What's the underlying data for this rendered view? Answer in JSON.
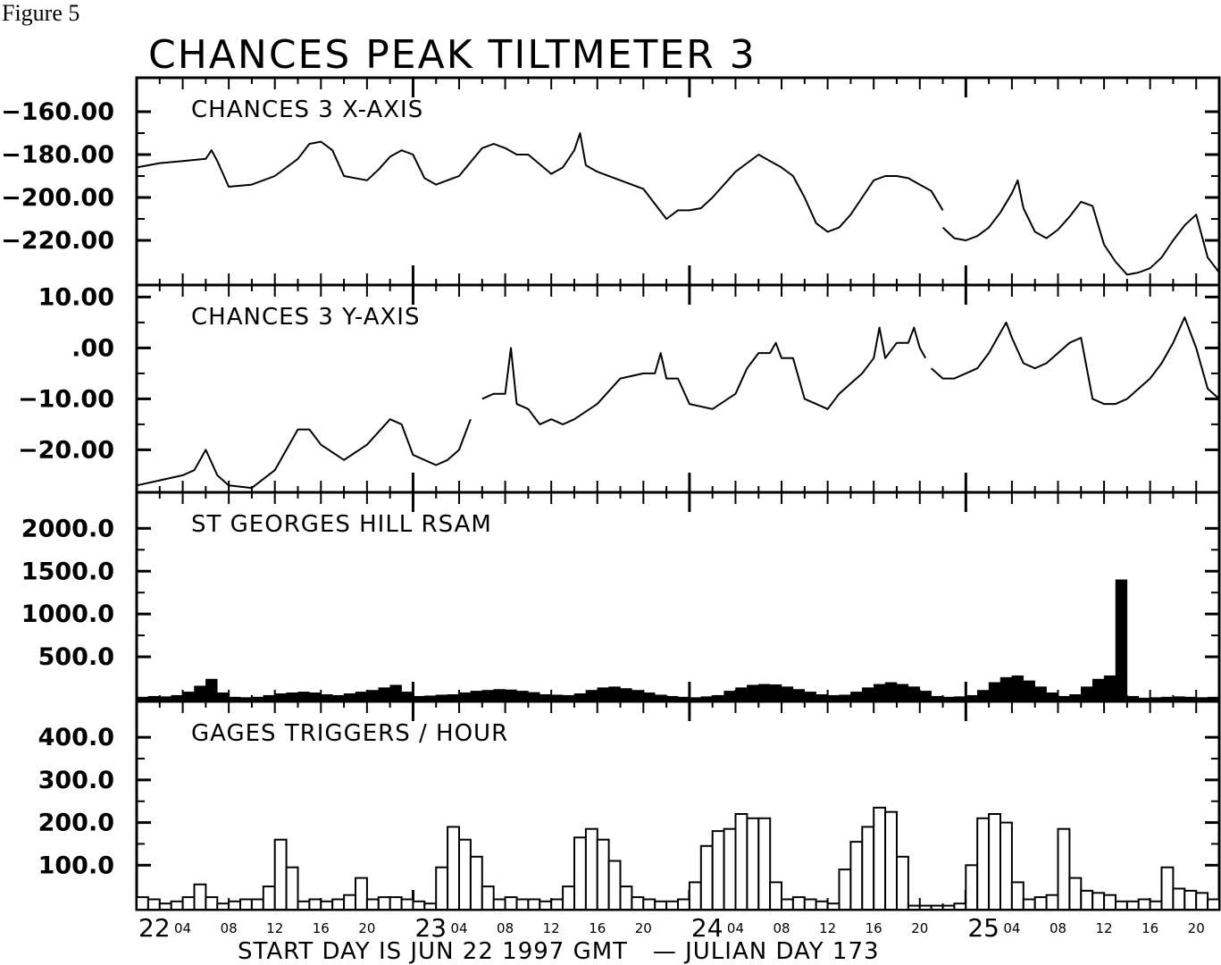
{
  "figure_label": "Figure 5",
  "title": "CHANCES PEAK TILTMETER 3",
  "footer": "START DAY IS JUN 22 1997 GMT   — JULIAN DAY 173",
  "x_axis": {
    "start_hour": 0,
    "end_hour": 94,
    "day_labels": [
      {
        "hour": 0,
        "label": "22"
      },
      {
        "hour": 24,
        "label": "23"
      },
      {
        "hour": 48,
        "label": "24"
      },
      {
        "hour": 72,
        "label": "25"
      }
    ],
    "hour_labels": [
      "04",
      "08",
      "12",
      "16",
      "20"
    ]
  },
  "chart_data": [
    {
      "type": "line",
      "title": "CHANCES 3 X-AXIS",
      "xlabel": "",
      "ylabel": "",
      "ylim": [
        -240,
        -145
      ],
      "yticks": [
        -160,
        -180,
        -200,
        -220
      ],
      "ytick_labels": [
        "−160.00",
        "−180.00",
        "−200.00",
        "−220.00"
      ],
      "segments": [
        {
          "x": [
            0,
            2,
            4,
            6,
            6.5,
            7,
            8,
            10,
            12,
            14,
            15,
            16,
            17,
            18,
            20,
            21,
            22,
            23,
            24,
            25,
            26,
            28,
            30,
            31,
            32,
            33,
            34,
            36,
            37,
            38,
            38.5,
            39,
            40,
            42,
            44,
            46,
            47,
            48,
            49,
            50,
            52,
            54,
            55,
            56,
            57,
            58,
            59,
            60,
            61,
            62,
            63,
            64,
            65,
            66,
            67,
            68,
            69,
            70
          ],
          "y": [
            -186,
            -184,
            -183,
            -182,
            -178,
            -183,
            -195,
            -194,
            -190,
            -182,
            -175,
            -174,
            -178,
            -190,
            -192,
            -187,
            -181,
            -178,
            -180,
            -191,
            -194,
            -190,
            -177,
            -175,
            -177,
            -180,
            -180,
            -189,
            -186,
            -178,
            -170,
            -185,
            -188,
            -192,
            -196,
            -210,
            -206,
            -206,
            -205,
            -200,
            -188,
            -180,
            -183,
            -186,
            -190,
            -200,
            -212,
            -216,
            -214,
            -208,
            -200,
            -192,
            -190,
            -190,
            -191,
            -194,
            -197,
            -206
          ]
        },
        {
          "x": [
            70,
            71,
            72,
            73,
            74,
            75,
            76,
            76.5,
            77,
            78,
            79,
            80,
            81,
            82,
            83,
            84,
            85,
            86,
            87,
            88,
            89,
            90,
            91,
            92,
            93,
            94
          ],
          "y": [
            -214,
            -219,
            -220,
            -218,
            -214,
            -207,
            -198,
            -192,
            -205,
            -216,
            -219,
            -215,
            -209,
            -202,
            -204,
            -222,
            -230,
            -236,
            -235,
            -233,
            -228,
            -220,
            -213,
            -208,
            -228,
            -235
          ]
        }
      ]
    },
    {
      "type": "line",
      "title": "CHANCES 3 Y-AXIS",
      "xlabel": "",
      "ylabel": "",
      "ylim": [
        -28,
        12
      ],
      "yticks": [
        10,
        0,
        -10,
        -20
      ],
      "ytick_labels": [
        "10.00",
        ".00",
        "−10.00",
        "−20.00"
      ],
      "segments": [
        {
          "x": [
            0,
            2,
            4,
            5,
            6,
            7,
            8,
            10,
            12,
            14,
            15,
            16,
            18,
            20,
            22,
            23,
            24,
            25,
            26,
            27,
            28,
            29
          ],
          "y": [
            -27,
            -26,
            -25,
            -24,
            -20,
            -25,
            -27,
            -27.5,
            -24,
            -16,
            -16,
            -19,
            -22,
            -19,
            -14,
            -15,
            -21,
            -22,
            -23,
            -22,
            -20,
            -14
          ]
        },
        {
          "x": [
            30,
            31,
            32,
            32.5,
            33,
            34,
            35,
            36,
            37,
            38,
            40,
            42,
            44,
            45,
            45.5,
            46,
            47,
            48,
            50,
            52,
            53,
            54,
            55,
            55.5,
            56,
            57,
            58,
            59,
            60,
            61,
            62,
            63,
            64,
            64.5,
            65,
            66,
            67,
            67.5,
            68,
            68.5
          ],
          "y": [
            -10,
            -9,
            -9,
            0,
            -11,
            -12,
            -15,
            -14,
            -15,
            -14,
            -11,
            -6,
            -5,
            -5,
            -1,
            -6,
            -6,
            -11,
            -12,
            -9,
            -4,
            -1,
            -1,
            1,
            -2,
            -2,
            -10,
            -11,
            -12,
            -9,
            -7,
            -5,
            -2,
            4,
            -2,
            1,
            1,
            4,
            0,
            -2
          ]
        },
        {
          "x": [
            69,
            70,
            71,
            72,
            73,
            74,
            75,
            75.5,
            76,
            77,
            78,
            79,
            80,
            81,
            82,
            83,
            84,
            85,
            86,
            87,
            88,
            89,
            90,
            91,
            92,
            93,
            94
          ],
          "y": [
            -4,
            -6,
            -6,
            -5,
            -4,
            -1,
            3,
            5,
            2,
            -3,
            -4,
            -3,
            -1,
            1,
            2,
            -10,
            -11,
            -11,
            -10,
            -8,
            -6,
            -3,
            1,
            6,
            0,
            -8,
            -10
          ]
        }
      ]
    },
    {
      "type": "bar",
      "title": "ST GEORGES HILL RSAM",
      "xlabel": "",
      "ylabel": "",
      "ylim": [
        0,
        2400
      ],
      "yticks": [
        2000,
        1500,
        1000,
        500
      ],
      "ytick_labels": [
        "2000.0",
        "1500.0",
        "1000.0",
        "500.0"
      ],
      "x": [
        0,
        1,
        2,
        3,
        4,
        5,
        6,
        7,
        8,
        9,
        10,
        11,
        12,
        13,
        14,
        15,
        16,
        17,
        18,
        19,
        20,
        21,
        22,
        23,
        24,
        25,
        26,
        27,
        28,
        29,
        30,
        31,
        32,
        33,
        34,
        35,
        36,
        37,
        38,
        39,
        40,
        41,
        42,
        43,
        44,
        45,
        46,
        47,
        48,
        49,
        50,
        51,
        52,
        53,
        54,
        55,
        56,
        57,
        58,
        59,
        60,
        61,
        62,
        63,
        64,
        65,
        66,
        67,
        68,
        69,
        70,
        71,
        72,
        73,
        74,
        75,
        76,
        77,
        78,
        79,
        80,
        81,
        82,
        83,
        84,
        85,
        86,
        87,
        88,
        89,
        90,
        91,
        92,
        93
      ],
      "values": [
        30,
        40,
        35,
        50,
        90,
        160,
        240,
        80,
        30,
        25,
        30,
        50,
        70,
        80,
        90,
        80,
        60,
        50,
        70,
        90,
        110,
        140,
        170,
        90,
        40,
        45,
        55,
        60,
        80,
        100,
        110,
        120,
        115,
        100,
        85,
        60,
        55,
        50,
        70,
        110,
        140,
        150,
        130,
        110,
        80,
        55,
        40,
        30,
        25,
        35,
        50,
        100,
        140,
        170,
        180,
        175,
        150,
        120,
        90,
        60,
        50,
        55,
        90,
        140,
        180,
        200,
        180,
        150,
        100,
        40,
        30,
        35,
        50,
        110,
        200,
        260,
        280,
        220,
        150,
        80,
        40,
        60,
        150,
        240,
        280,
        1400,
        40,
        20,
        25,
        30,
        35,
        30,
        25,
        30
      ]
    },
    {
      "type": "bar",
      "title": "GAGES TRIGGERS / HOUR",
      "xlabel": "",
      "ylabel": "",
      "ylim": [
        0,
        480
      ],
      "yticks": [
        400,
        300,
        200,
        100
      ],
      "ytick_labels": [
        "400.0",
        "300.0",
        "200.0",
        "100.0"
      ],
      "x": [
        0,
        1,
        2,
        3,
        4,
        5,
        6,
        7,
        8,
        9,
        10,
        11,
        12,
        13,
        14,
        15,
        16,
        17,
        18,
        19,
        20,
        21,
        22,
        23,
        24,
        25,
        26,
        27,
        28,
        29,
        30,
        31,
        32,
        33,
        34,
        35,
        36,
        37,
        38,
        39,
        40,
        41,
        42,
        43,
        44,
        45,
        46,
        47,
        48,
        49,
        50,
        51,
        52,
        53,
        54,
        55,
        56,
        57,
        58,
        59,
        60,
        61,
        62,
        63,
        64,
        65,
        66,
        67,
        68,
        69,
        70,
        71,
        72,
        73,
        74,
        75,
        76,
        77,
        78,
        79,
        80,
        81,
        82,
        83,
        84,
        85,
        86,
        87,
        88,
        89,
        90,
        91,
        92,
        93
      ],
      "values": [
        25,
        20,
        10,
        15,
        25,
        55,
        25,
        10,
        15,
        20,
        20,
        50,
        160,
        95,
        15,
        20,
        15,
        20,
        30,
        70,
        20,
        25,
        25,
        20,
        15,
        10,
        95,
        190,
        160,
        120,
        50,
        20,
        25,
        20,
        20,
        15,
        20,
        50,
        165,
        185,
        160,
        110,
        50,
        25,
        20,
        15,
        15,
        20,
        60,
        145,
        180,
        185,
        220,
        210,
        210,
        60,
        20,
        25,
        20,
        15,
        10,
        90,
        155,
        190,
        235,
        225,
        120,
        5,
        5,
        5,
        5,
        10,
        100,
        210,
        220,
        200,
        60,
        20,
        25,
        30,
        185,
        70,
        40,
        35,
        30,
        15,
        15,
        20,
        15,
        95,
        45,
        40,
        35,
        20
      ]
    }
  ]
}
